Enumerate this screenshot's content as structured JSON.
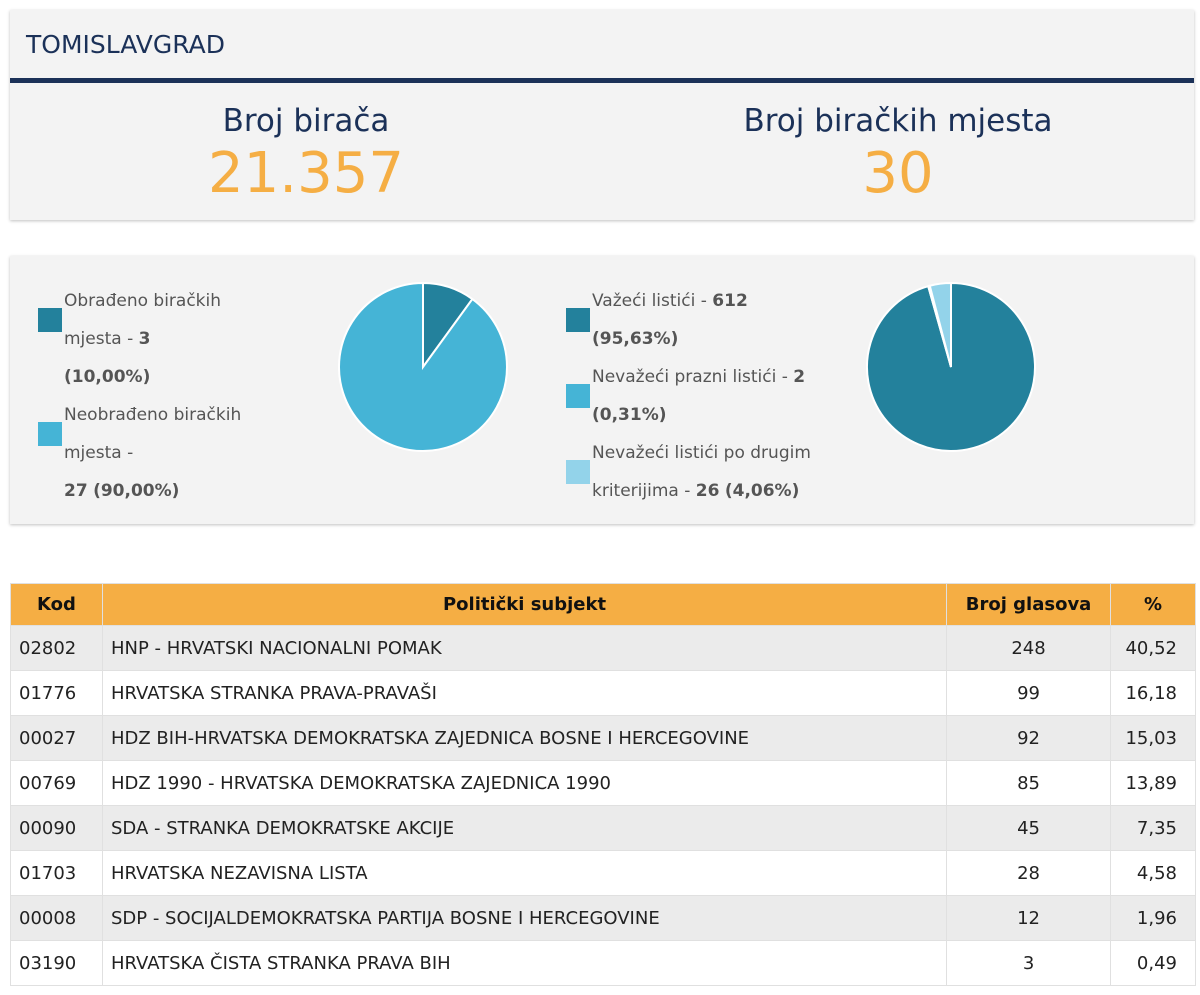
{
  "header": {
    "title": "TOMISLAVGRAD",
    "stats": [
      {
        "label": "Broj birača",
        "value": "21.357"
      },
      {
        "label": "Broj biračkih mjesta",
        "value": "30"
      }
    ]
  },
  "colors": {
    "navy": "#1b3158",
    "accent": "#f5ae44",
    "dark_teal": "#23819c",
    "mid_blue": "#45b4d6",
    "light_blue": "#93d3ea"
  },
  "chart_data": [
    {
      "type": "pie",
      "slices": [
        {
          "label": "Obrađeno biračkih mjesta",
          "value": 3,
          "percent": "10,00%",
          "color": "#23819c"
        },
        {
          "label": "Neobrađeno biračkih mjesta",
          "value": 27,
          "percent": "90,00%",
          "color": "#45b4d6"
        }
      ]
    },
    {
      "type": "pie",
      "slices": [
        {
          "label": "Važeći listići",
          "value": 612,
          "percent": "95,63%",
          "color": "#23819c"
        },
        {
          "label": "Nevažeći prazni listići",
          "value": 2,
          "percent": "0,31%",
          "color": "#45b4d6"
        },
        {
          "label": "Nevažeći listići po drugim kriterijima",
          "value": 26,
          "percent": "4,06%",
          "color": "#93d3ea"
        }
      ]
    }
  ],
  "legend1": [
    {
      "label": "Obrađeno biračkih mjesta - ",
      "value": "3",
      "pct": "(10,00%)"
    },
    {
      "label": "Neobrađeno biračkih mjesta - ",
      "value": "27",
      "pct": "(90,00%)"
    }
  ],
  "legend2": [
    {
      "label": "Važeći listići - ",
      "value": "612",
      "pct": "(95,63%)"
    },
    {
      "label": "Nevažeći prazni listići - ",
      "value": "2",
      "pct": "(0,31%)"
    },
    {
      "label": "Nevažeći listići po drugim kriterijima - ",
      "value": "26",
      "pct": "(4,06%)"
    }
  ],
  "table": {
    "headers": [
      "Kod",
      "Politički subjekt",
      "Broj glasova",
      "%"
    ],
    "rows": [
      [
        "02802",
        "HNP - HRVATSKI NACIONALNI POMAK",
        "248",
        "40,52"
      ],
      [
        "01776",
        "HRVATSKA STRANKA PRAVA-PRAVAŠI",
        "99",
        "16,18"
      ],
      [
        "00027",
        "HDZ BIH-HRVATSKA DEMOKRATSKA ZAJEDNICA BOSNE I HERCEGOVINE",
        "92",
        "15,03"
      ],
      [
        "00769",
        "HDZ 1990 - HRVATSKA DEMOKRATSKA ZAJEDNICA 1990",
        "85",
        "13,89"
      ],
      [
        "00090",
        "SDA - STRANKA DEMOKRATSKE AKCIJE",
        "45",
        "7,35"
      ],
      [
        "01703",
        "HRVATSKA NEZAVISNA LISTA",
        "28",
        "4,58"
      ],
      [
        "00008",
        "SDP - SOCIJALDEMOKRATSKA PARTIJA BOSNE I HERCEGOVINE",
        "12",
        "1,96"
      ],
      [
        "03190",
        "HRVATSKA ČISTA STRANKA PRAVA BIH",
        "3",
        "0,49"
      ]
    ]
  }
}
